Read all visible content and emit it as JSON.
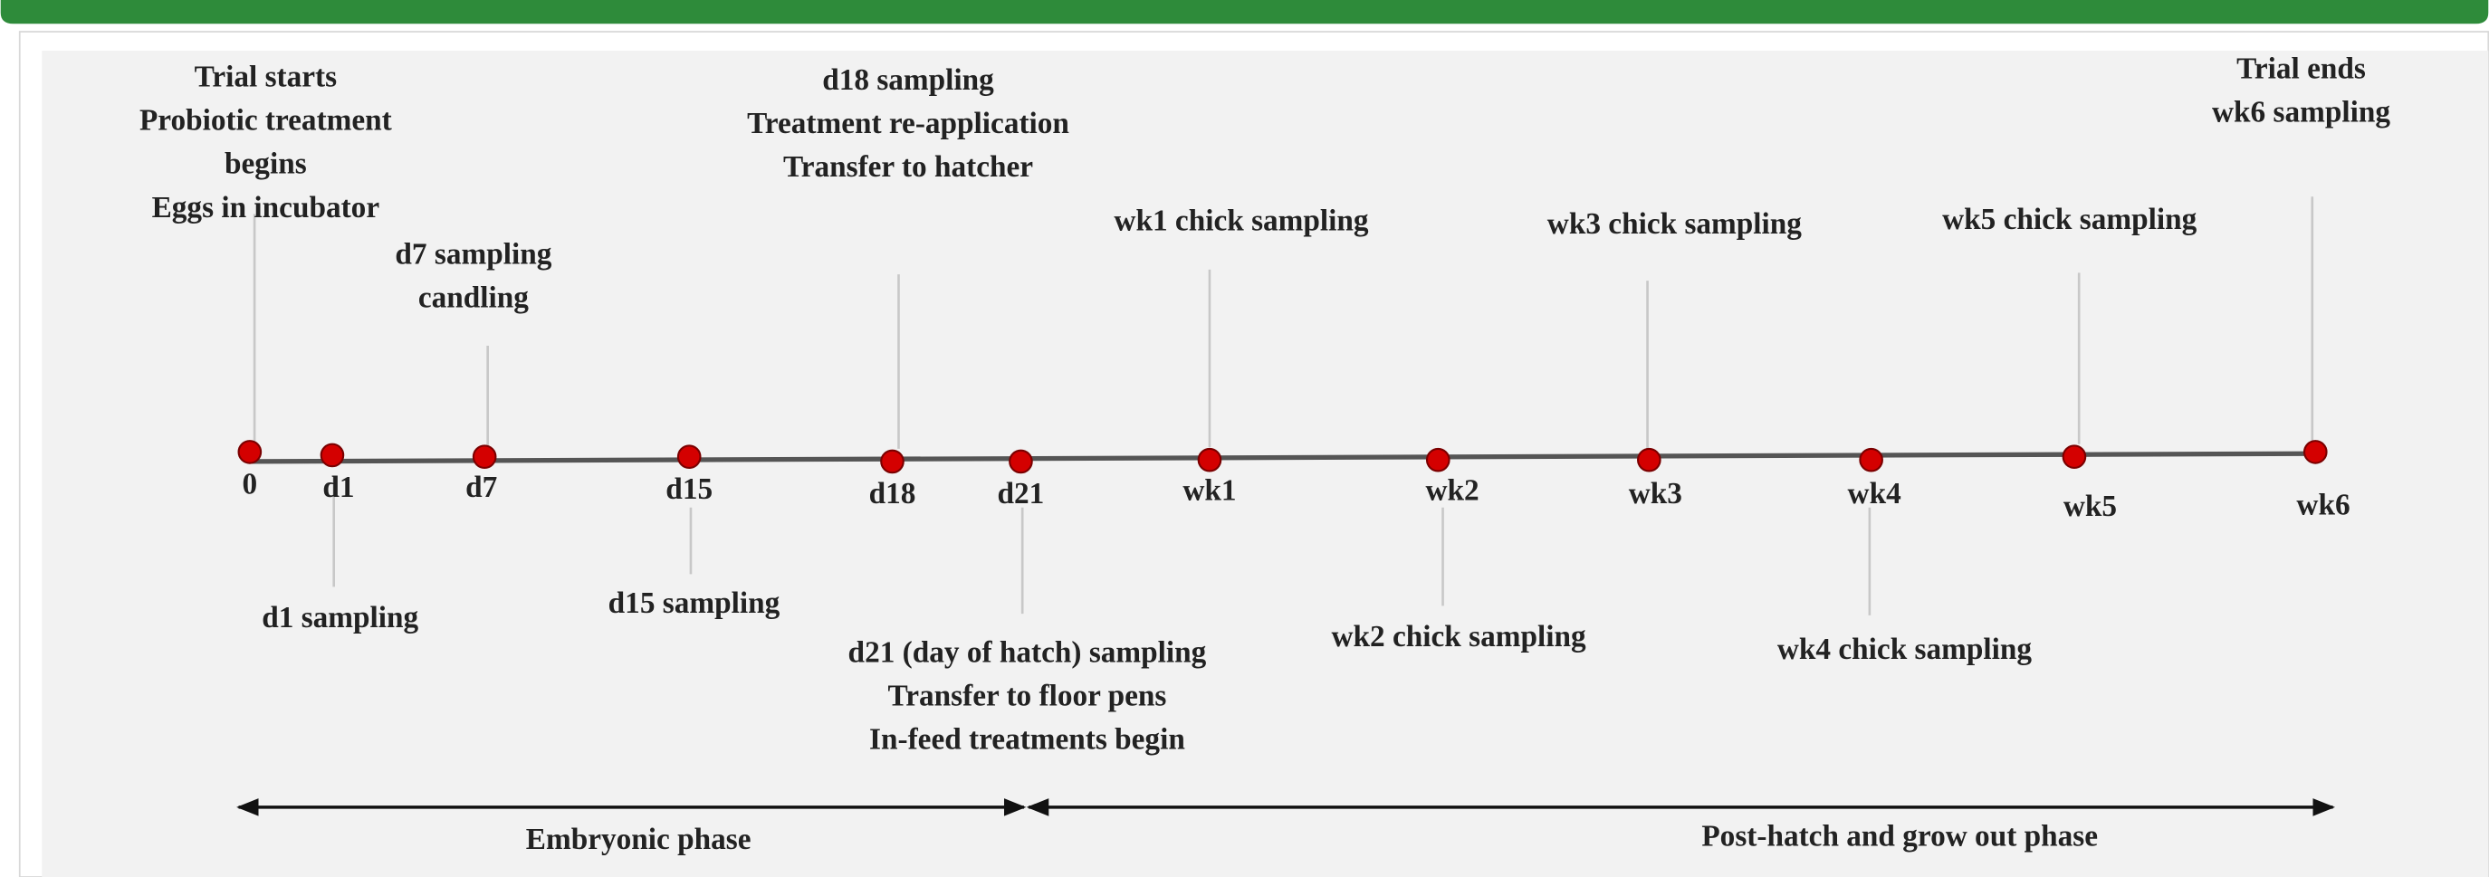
{
  "timeline": {
    "points": [
      {
        "label": "0",
        "annotation": [
          "Trial starts",
          "Probiotic treatment",
          "begins",
          "Eggs in incubator"
        ]
      },
      {
        "label": "d1",
        "annotation": [
          "d1 sampling"
        ]
      },
      {
        "label": "d7",
        "annotation": [
          "d7 sampling",
          "candling"
        ]
      },
      {
        "label": "d15",
        "annotation": [
          "d15 sampling"
        ]
      },
      {
        "label": "d18",
        "annotation": [
          "d18 sampling",
          "Treatment re-application",
          "Transfer to hatcher"
        ]
      },
      {
        "label": "d21",
        "annotation": [
          "d21 (day of hatch) sampling",
          "Transfer to floor pens",
          "In-feed treatments begin"
        ]
      },
      {
        "label": "wk1",
        "annotation": [
          "wk1 chick sampling"
        ]
      },
      {
        "label": "wk2",
        "annotation": [
          "wk2 chick sampling"
        ]
      },
      {
        "label": "wk3",
        "annotation": [
          "wk3 chick sampling"
        ]
      },
      {
        "label": "wk4",
        "annotation": [
          "wk4 chick sampling"
        ]
      },
      {
        "label": "wk5",
        "annotation": [
          "wk5 chick sampling"
        ]
      },
      {
        "label": "wk6",
        "annotation": [
          "Trial ends",
          "wk6 sampling"
        ]
      }
    ],
    "phases": [
      "Embryonic phase",
      "Post-hatch and grow out phase"
    ]
  }
}
